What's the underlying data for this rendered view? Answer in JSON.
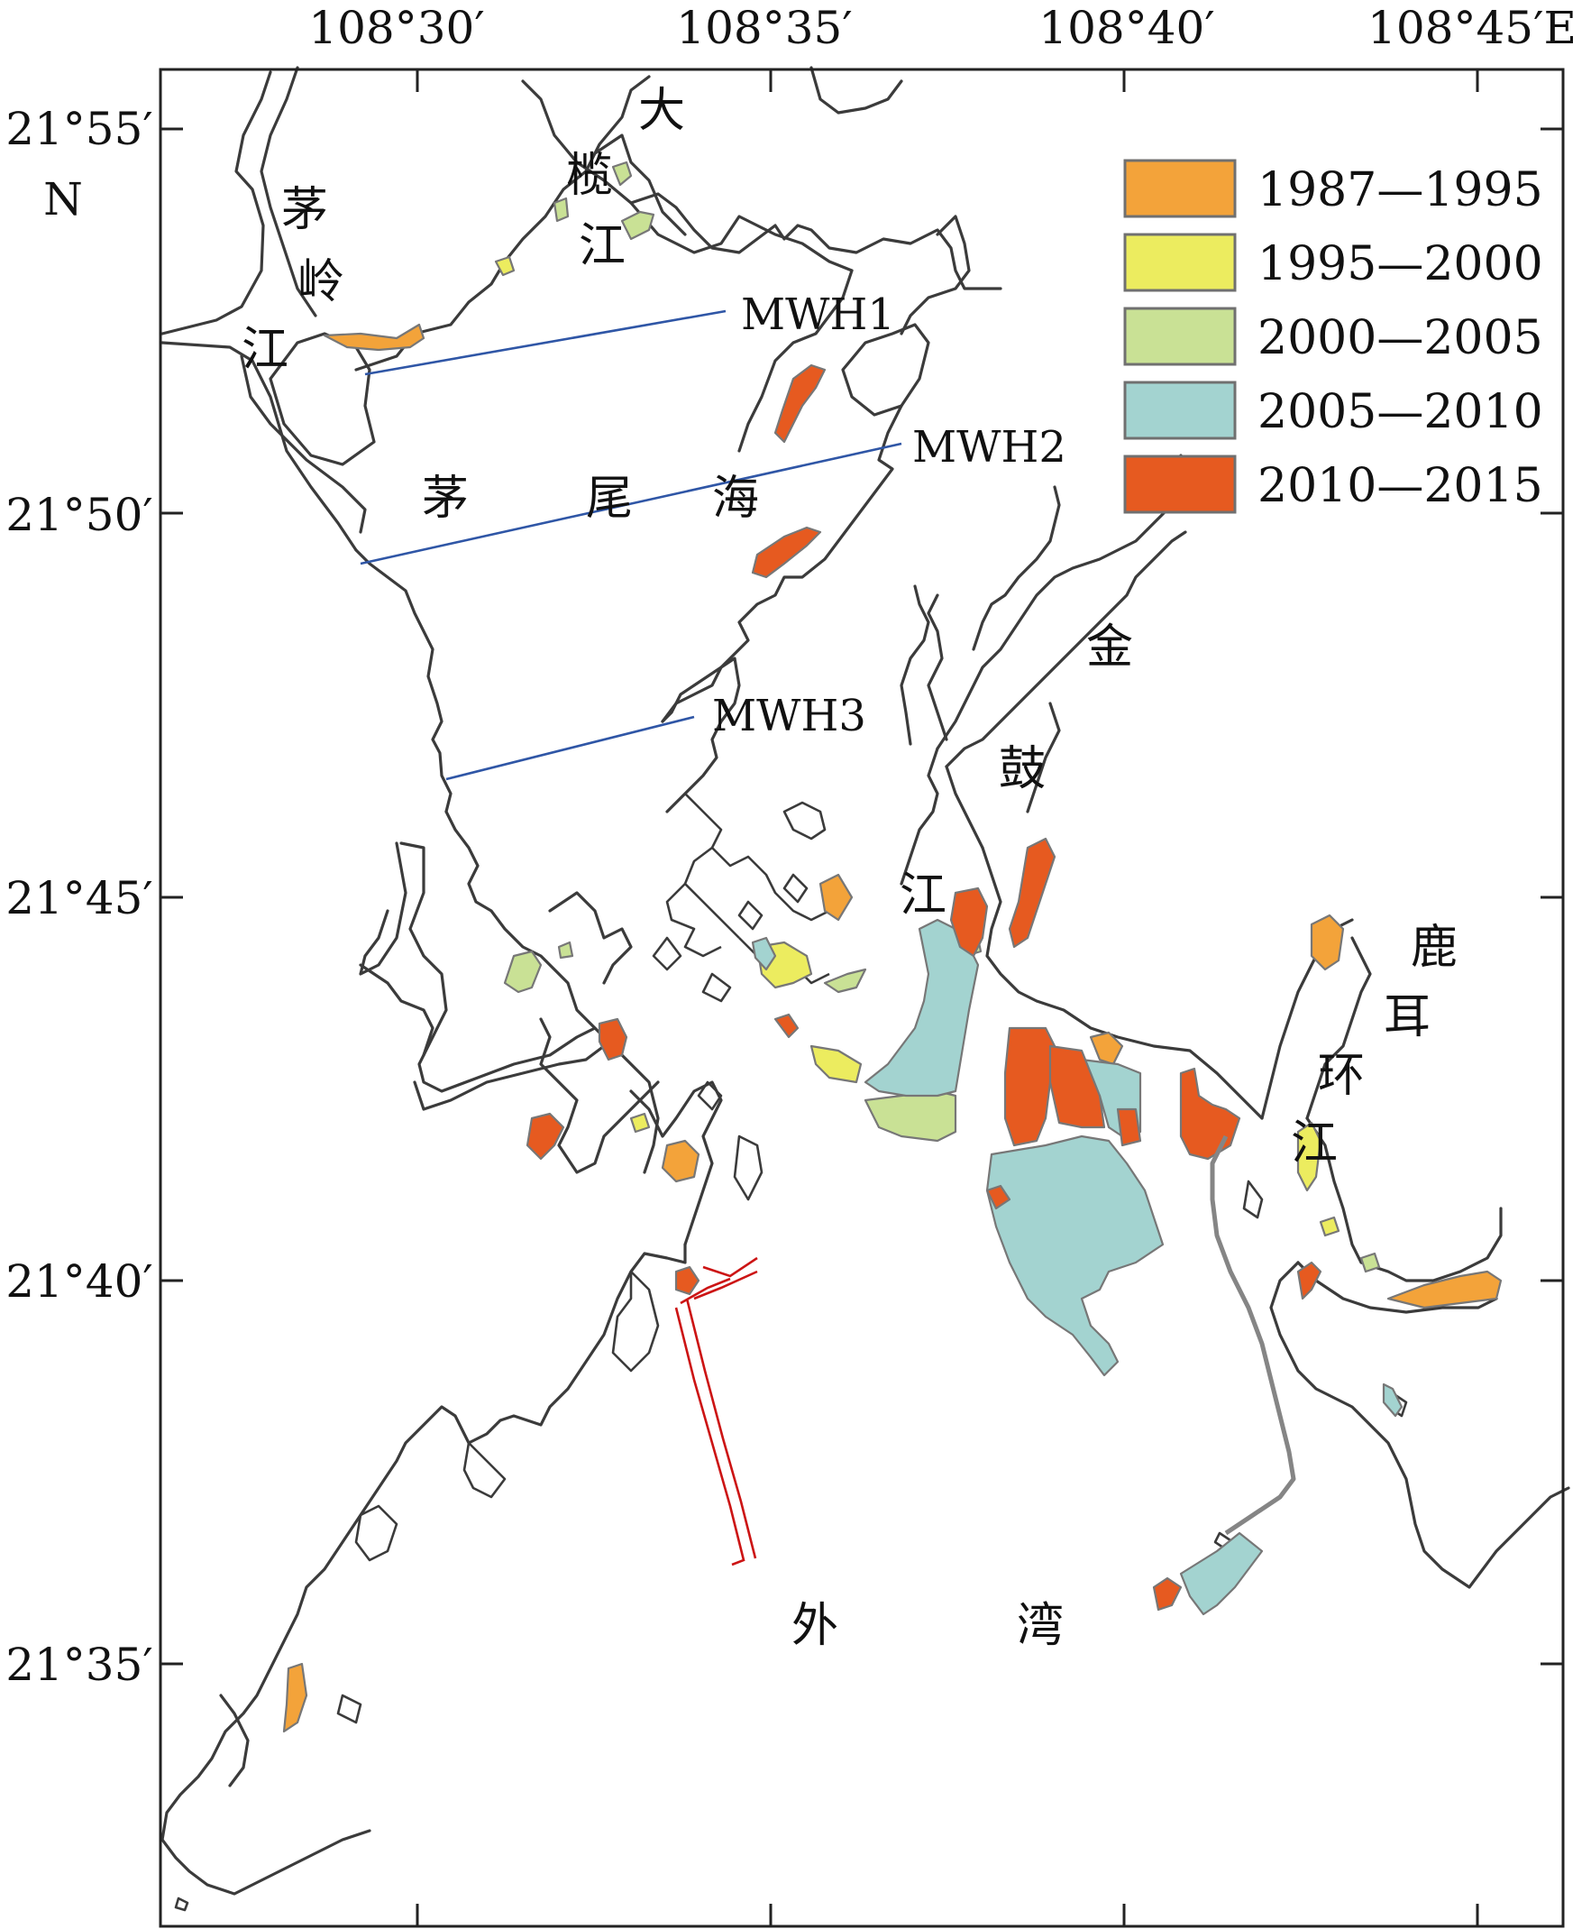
{
  "axes": {
    "lon_ticks": [
      "108°30′",
      "108°35′",
      "108°40′",
      "108°45′E"
    ],
    "lat_ticks": [
      "21°55′",
      "21°50′",
      "21°45′",
      "21°40′",
      "21°35′"
    ],
    "lat_unit": "N"
  },
  "legend": [
    {
      "label": "1987—1995",
      "color": "#f3a33a"
    },
    {
      "label": "1995—2000",
      "color": "#ecec5f"
    },
    {
      "label": "2000—2005",
      "color": "#c9e195"
    },
    {
      "label": "2005—2010",
      "color": "#a3d3d0"
    },
    {
      "label": "2010—2015",
      "color": "#e65a20"
    }
  ],
  "sections": [
    "MWH1",
    "MWH2",
    "MWH3"
  ],
  "place_labels": {
    "maoling_1": "茅",
    "maoling_2": "岭",
    "maoling_3": "江",
    "dalan_1": "大",
    "dalan_2": "榄",
    "dalan_3": "江",
    "maowei_1": "茅",
    "maowei_2": "尾",
    "maowei_3": "海",
    "jingu_1": "金",
    "jingu_2": "鼓",
    "jingu_3": "江",
    "luer_1": "鹿",
    "luer_2": "耳",
    "luer_3": "环",
    "luer_4": "江",
    "waiwan_1": "外",
    "waiwan_2": "湾"
  }
}
